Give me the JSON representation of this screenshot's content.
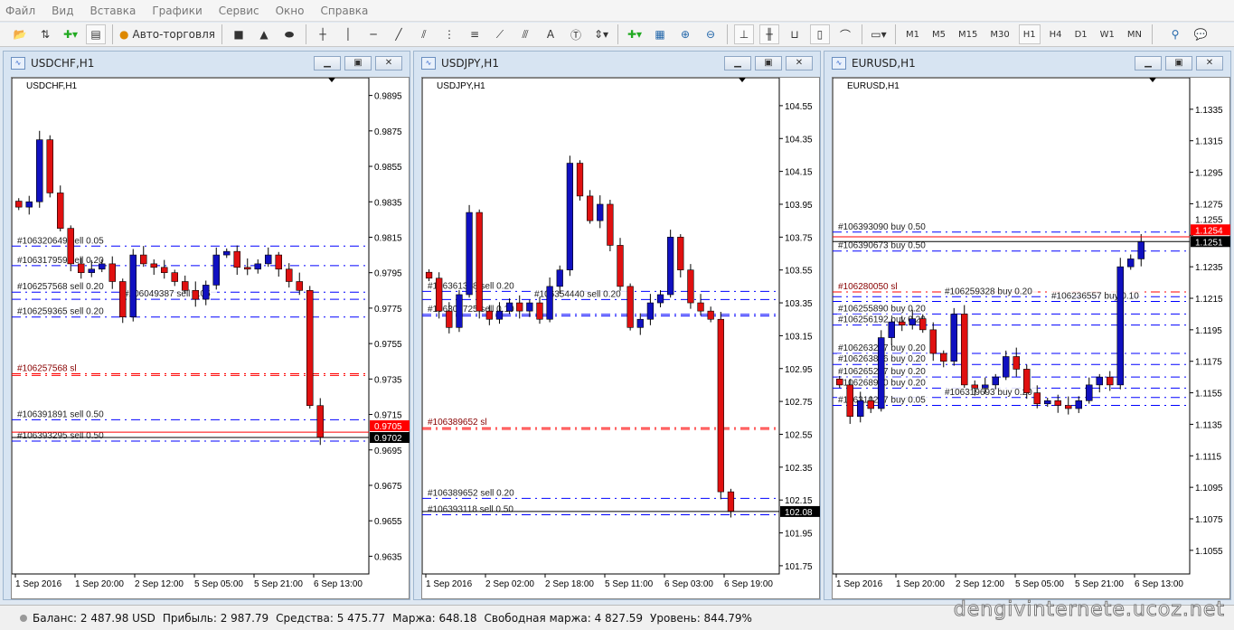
{
  "menu": [
    "Файл",
    "Вид",
    "Вставка",
    "Графики",
    "Сервис",
    "Окно",
    "Справка"
  ],
  "toolbar": {
    "autotrading": "Авто-торговля",
    "timeframes": [
      "M1",
      "M5",
      "M15",
      "M30",
      "H1",
      "H4",
      "D1",
      "W1",
      "MN"
    ],
    "active_timeframe": "H1"
  },
  "colors": {
    "bull": "#1010c0",
    "bear": "#e01010",
    "order_line": "#0000ff",
    "sl_line": "#ff0000",
    "bid": "#000000",
    "ask": "#ff0000"
  },
  "windows": [
    {
      "title": "USDCHF,H1",
      "inner": "USDCHF,H1",
      "ymax": 0.9905,
      "ymin": 0.9625,
      "ticks": [
        0.9895,
        0.9875,
        0.9855,
        0.9835,
        0.9815,
        0.9795,
        0.9775,
        0.9755,
        0.9735,
        0.9715,
        0.9695,
        0.9675,
        0.9655,
        0.9635
      ],
      "decimals": 4,
      "bid": "0.9702",
      "ask": "0.9705",
      "times": [
        "1 Sep 2016",
        "1 Sep 20:00",
        "2 Sep 12:00",
        "5 Sep 05:00",
        "5 Sep 21:00",
        "6 Sep 13:00"
      ],
      "closes": [
        0.9832,
        0.9835,
        0.987,
        0.984,
        0.982,
        0.98,
        0.9795,
        0.9797,
        0.98,
        0.979,
        0.977,
        0.9805,
        0.98,
        0.9798,
        0.9795,
        0.979,
        0.9785,
        0.978,
        0.9788,
        0.9805,
        0.9807,
        0.9798,
        0.9797,
        0.98,
        0.9805,
        0.9797,
        0.979,
        0.9785,
        0.972,
        0.9702
      ],
      "orders": [
        {
          "label": "#106320649 sell 0.05",
          "price": 0.981,
          "type": "order"
        },
        {
          "label": "#106317959 sell 0.20",
          "price": 0.9799,
          "type": "order"
        },
        {
          "label": "#106257568 sell 0.20",
          "price": 0.9784,
          "type": "order"
        },
        {
          "label": "#106049387 sell 0.05",
          "price": 0.978,
          "type": "order"
        },
        {
          "label": "#106259365 sell 0.20",
          "price": 0.977,
          "type": "order"
        },
        {
          "label": "#106257568 sl",
          "price": 0.9738,
          "type": "sl"
        },
        {
          "label": "",
          "price": 0.9737,
          "type": "sl"
        },
        {
          "label": "#106391891 sell 0.50",
          "price": 0.9712,
          "type": "order"
        },
        {
          "label": "#106393295 sell 0.50",
          "price": 0.97,
          "type": "order"
        }
      ]
    },
    {
      "title": "USDJPY,H1",
      "inner": "USDJPY,H1",
      "ymax": 104.72,
      "ymin": 101.7,
      "ticks": [
        104.55,
        104.35,
        104.15,
        103.95,
        103.75,
        103.55,
        103.35,
        103.15,
        102.95,
        102.75,
        102.55,
        102.35,
        102.15,
        101.95,
        101.75
      ],
      "decimals": 2,
      "bid": "102.08",
      "ask": "",
      "times": [
        "1 Sep 2016",
        "2 Sep 02:00",
        "2 Sep 18:00",
        "5 Sep 11:00",
        "6 Sep 03:00",
        "6 Sep 19:00"
      ],
      "closes": [
        103.5,
        103.3,
        103.2,
        103.4,
        103.9,
        103.3,
        103.25,
        103.3,
        103.35,
        103.3,
        103.35,
        103.25,
        103.45,
        103.55,
        104.2,
        104.0,
        103.85,
        103.95,
        103.7,
        103.45,
        103.2,
        103.25,
        103.35,
        103.4,
        103.75,
        103.55,
        103.35,
        103.3,
        103.25,
        102.2,
        102.08
      ],
      "orders": [
        {
          "label": "#106361368 sell 0.20",
          "price": 103.42,
          "type": "order"
        },
        {
          "label": "#106354440 sell 0.20",
          "price": 103.37,
          "type": "order"
        },
        {
          "label": "#106306725 sell 0.10",
          "price": 103.28,
          "type": "order"
        },
        {
          "label": "",
          "price": 103.27,
          "type": "order"
        },
        {
          "label": "#106389652 sl",
          "price": 102.59,
          "type": "sl"
        },
        {
          "label": "",
          "price": 102.58,
          "type": "sl"
        },
        {
          "label": "#106389652 sell 0.20",
          "price": 102.16,
          "type": "order"
        },
        {
          "label": "#106393118 sell 0.50",
          "price": 102.06,
          "type": "order"
        }
      ]
    },
    {
      "title": "EURUSD,H1",
      "inner": "EURUSD,H1",
      "ymax": 1.1355,
      "ymin": 1.104,
      "ticks": [
        1.1335,
        1.1315,
        1.1295,
        1.1275,
        1.1255,
        1.1235,
        1.1215,
        1.1195,
        1.1175,
        1.1155,
        1.1135,
        1.1115,
        1.1095,
        1.1075,
        1.1055
      ],
      "decimals": 4,
      "bid": "1.1251",
      "ask": "1.1254",
      "times": [
        "1 Sep 2016",
        "1 Sep 20:00",
        "2 Sep 12:00",
        "5 Sep 05:00",
        "5 Sep 21:00",
        "6 Sep 13:00"
      ],
      "closes": [
        1.116,
        1.114,
        1.115,
        1.1145,
        1.119,
        1.12,
        1.1198,
        1.1202,
        1.1195,
        1.118,
        1.1175,
        1.1205,
        1.116,
        1.1158,
        1.116,
        1.1165,
        1.1178,
        1.117,
        1.1155,
        1.1148,
        1.115,
        1.1147,
        1.1145,
        1.115,
        1.116,
        1.1165,
        1.116,
        1.1235,
        1.124,
        1.1251
      ],
      "orders": [
        {
          "label": "#106393090 buy 0.50",
          "price": 1.1257,
          "type": "order"
        },
        {
          "label": "#106390673 buy 0.50",
          "price": 1.1245,
          "type": "order"
        },
        {
          "label": "#106280050 sl",
          "price": 1.1219,
          "type": "sl"
        },
        {
          "label": "#106259328 buy 0.20",
          "price": 1.1216,
          "type": "order"
        },
        {
          "label": "#106236557 buy 0.10",
          "price": 1.1213,
          "type": "order"
        },
        {
          "label": "#106255890 buy 0.20",
          "price": 1.1205,
          "type": "order"
        },
        {
          "label": "#106256192 buy 0.20",
          "price": 1.1198,
          "type": "order"
        },
        {
          "label": "#106263287 buy 0.20",
          "price": 1.118,
          "type": "order"
        },
        {
          "label": "#106263896 buy 0.20",
          "price": 1.1173,
          "type": "order"
        },
        {
          "label": "#106265267 buy 0.20",
          "price": 1.1165,
          "type": "order"
        },
        {
          "label": "#106268910 buy 0.20",
          "price": 1.1158,
          "type": "order"
        },
        {
          "label": "#106319693 buy 0.20",
          "price": 1.1152,
          "type": "order"
        },
        {
          "label": "#106310277 buy 0.05",
          "price": 1.1147,
          "type": "order"
        }
      ]
    }
  ],
  "status": {
    "balance": "Баланс: 2 487.98 USD",
    "profit": "Прибыль: 2 987.79",
    "equity": "Средства: 5 475.77",
    "margin": "Маржа: 648.18",
    "free_margin": "Свободная маржа: 4 827.59",
    "level": "Уровень: 844.79%"
  },
  "watermark": "dengivinternete.ucoz.net"
}
